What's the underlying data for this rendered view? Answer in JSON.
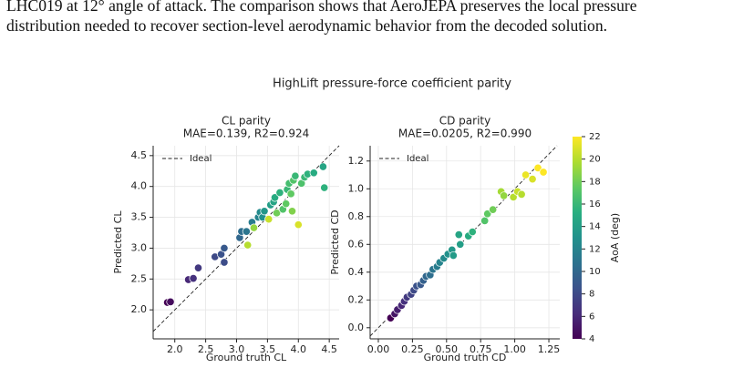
{
  "text": {
    "lines": [
      "LHC019 at 12° angle of attack. The comparison shows that AeroJEPA preserves the local pressure",
      "distribution needed to recover section-level aerodynamic behavior from the decoded solution."
    ]
  },
  "chart_data": {
    "type": "scatter",
    "title": "HighLift pressure-force coefficient parity",
    "colorbar": {
      "label": "AoA (deg)",
      "colormap": "viridis",
      "lim": [
        4,
        22
      ],
      "ticks": [
        4,
        6,
        8,
        10,
        12,
        14,
        16,
        18,
        20,
        22
      ]
    },
    "subplots": [
      {
        "title": "CL parity",
        "subtitle": "MAE=0.139, R2=0.924",
        "xlabel": "Ground truth CL",
        "ylabel": "Predicted CL",
        "reference_line": "Ideal",
        "grid": true,
        "xlim": [
          1.65,
          4.66
        ],
        "ylim": [
          1.53,
          4.66
        ],
        "xticks": [
          {
            "value": 2,
            "label": "2.0"
          },
          2.5,
          {
            "value": 3,
            "label": "3.0"
          },
          3.5,
          {
            "value": 4,
            "label": "4.0"
          },
          4.5
        ],
        "yticks": [
          {
            "value": 2,
            "label": "2.0"
          },
          2.5,
          {
            "value": 3,
            "label": "3.0"
          },
          3.5,
          {
            "value": 4,
            "label": "4.0"
          },
          4.5
        ],
        "x": [
          1.88,
          1.93,
          2.22,
          2.3,
          2.38,
          2.65,
          2.75,
          2.8,
          2.8,
          3.05,
          3.08,
          3.16,
          3.18,
          3.25,
          3.28,
          3.35,
          3.38,
          3.42,
          3.45,
          3.55,
          3.52,
          3.6,
          3.65,
          3.62,
          3.7,
          3.75,
          3.8,
          3.82,
          3.85,
          3.9,
          3.92,
          3.95,
          4.0,
          4.05,
          4.1,
          4.15,
          4.25,
          4.4,
          4.42,
          3.88
        ],
        "y": [
          2.12,
          2.13,
          2.49,
          2.51,
          2.68,
          2.86,
          2.9,
          2.77,
          3.0,
          3.17,
          3.27,
          3.27,
          3.05,
          3.42,
          3.33,
          3.5,
          3.58,
          3.5,
          3.6,
          3.7,
          3.47,
          3.75,
          3.57,
          3.82,
          3.9,
          3.63,
          3.72,
          3.95,
          4.05,
          3.6,
          4.1,
          4.17,
          3.38,
          4.05,
          4.15,
          4.2,
          4.22,
          4.32,
          3.98,
          3.88
        ],
        "c": [
          4,
          4.5,
          6,
          6.5,
          7,
          8,
          8.5,
          8.2,
          9,
          10,
          10.5,
          11,
          20,
          11.5,
          19,
          12,
          12.5,
          13,
          13.5,
          14,
          20.5,
          14.5,
          18,
          15,
          15.5,
          17,
          17.5,
          16,
          16.5,
          18.5,
          17,
          16,
          21,
          16.8,
          16,
          15.5,
          15,
          14.5,
          15.5,
          17.5
        ]
      },
      {
        "title": "CD parity",
        "subtitle": "MAE=0.0205, R2=0.990",
        "xlabel": "Ground truth CD",
        "ylabel": "Predicted CD",
        "reference_line": "Ideal",
        "grid": true,
        "xlim": [
          -0.06,
          1.33
        ],
        "ylim": [
          -0.08,
          1.31
        ],
        "xticks": [
          {
            "value": 0,
            "label": "0.00"
          },
          0.25,
          {
            "value": 0.5,
            "label": "0.50"
          },
          0.75,
          {
            "value": 1,
            "label": "1.00"
          },
          1.25
        ],
        "yticks": [
          {
            "value": 0,
            "label": "0.0"
          },
          0.2,
          0.4,
          0.6,
          0.8,
          {
            "value": 1,
            "label": "1.0"
          },
          1.2
        ],
        "x": [
          0.09,
          0.12,
          0.14,
          0.17,
          0.19,
          0.21,
          0.24,
          0.26,
          0.28,
          0.31,
          0.33,
          0.35,
          0.38,
          0.4,
          0.43,
          0.45,
          0.48,
          0.51,
          0.54,
          0.55,
          0.59,
          0.6,
          0.66,
          0.69,
          0.78,
          0.8,
          0.84,
          0.9,
          0.92,
          0.99,
          1.02,
          1.05,
          1.08,
          1.13,
          1.17,
          1.21
        ],
        "y": [
          0.07,
          0.1,
          0.13,
          0.16,
          0.19,
          0.22,
          0.24,
          0.27,
          0.3,
          0.31,
          0.34,
          0.37,
          0.38,
          0.42,
          0.44,
          0.47,
          0.5,
          0.53,
          0.56,
          0.52,
          0.67,
          0.6,
          0.66,
          0.69,
          0.77,
          0.82,
          0.85,
          0.98,
          0.95,
          0.94,
          0.98,
          0.96,
          1.1,
          1.07,
          1.15,
          1.12
        ],
        "c": [
          4,
          5,
          5.5,
          6,
          6.5,
          7,
          7.5,
          8,
          8.5,
          9,
          9.5,
          10,
          10.5,
          11,
          11.5,
          12,
          12.5,
          13,
          13.5,
          13.8,
          14.5,
          14,
          15,
          15.5,
          17,
          17.5,
          18,
          19.5,
          19,
          20,
          20.5,
          20,
          21.5,
          21,
          22,
          22
        ]
      }
    ]
  }
}
